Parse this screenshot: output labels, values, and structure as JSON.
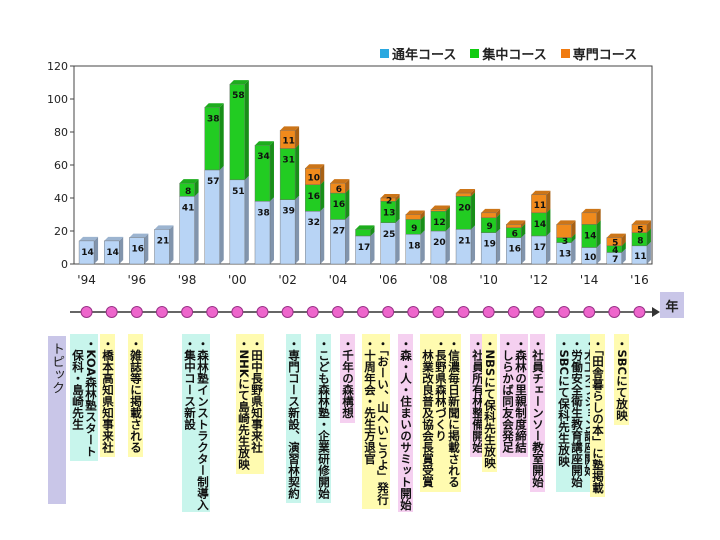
{
  "chart_data": {
    "type": "bar",
    "stacked": true,
    "categories": [
      "'94",
      "'95",
      "'96",
      "'97",
      "'98",
      "'99",
      "'00",
      "'01",
      "'02",
      "'03",
      "'04",
      "'05",
      "'06",
      "'07",
      "'08",
      "'09",
      "'10",
      "'11",
      "'12",
      "'13",
      "'14",
      "'15",
      "'16"
    ],
    "x_tick_labels": [
      "'94",
      "",
      "'96",
      "",
      "'98",
      "",
      "'00",
      "",
      "'02",
      "",
      "'04",
      "",
      "'06",
      "",
      "'08",
      "",
      "'10",
      "",
      "'12",
      "",
      "'14",
      "",
      "'16"
    ],
    "series": [
      {
        "name": "通年コース",
        "color": "#b8d4f5",
        "legend_color": "#2aa8e0",
        "values": [
          14,
          14,
          16,
          21,
          41,
          57,
          51,
          38,
          39,
          32,
          27,
          17,
          25,
          18,
          20,
          21,
          19,
          16,
          17,
          13,
          10,
          7,
          11
        ]
      },
      {
        "name": "集中コース",
        "color": "#22cc22",
        "legend_color": "#11cc11",
        "values": [
          0,
          0,
          0,
          0,
          8,
          38,
          58,
          34,
          31,
          16,
          16,
          4,
          13,
          9,
          12,
          20,
          9,
          6,
          14,
          3,
          14,
          4,
          8
        ]
      },
      {
        "name": "専門コース",
        "color": "#f08a1c",
        "legend_color": "#f07a10",
        "values": [
          0,
          0,
          0,
          0,
          0,
          0,
          0,
          0,
          11,
          10,
          6,
          0,
          2,
          3,
          1,
          2,
          3,
          2,
          11,
          8,
          7,
          5,
          5
        ]
      }
    ],
    "value_labels": [
      [
        "14",
        "14",
        "16",
        "21",
        "41",
        "57",
        "51",
        "38",
        "39",
        "32",
        "27",
        "17",
        "25",
        "18",
        "20",
        "21",
        "19",
        "16",
        "17",
        "13",
        "10",
        "7",
        "11"
      ],
      [
        "",
        "",
        "",
        "",
        "8",
        "38",
        "58",
        "34",
        "31",
        "16",
        "16",
        "",
        "13",
        "9",
        "12",
        "20",
        "9",
        "6",
        "14",
        "3",
        "14",
        "4",
        "8"
      ],
      [
        "",
        "",
        "",
        "",
        "",
        "",
        "",
        "",
        "11",
        "10",
        "6",
        "",
        "2",
        "",
        "",
        "",
        "",
        "",
        "11",
        "",
        "",
        "5",
        "5"
      ]
    ],
    "ylim": [
      0,
      120
    ],
    "yticks": [
      "0",
      "20",
      "40",
      "60",
      "80",
      "100",
      "120"
    ],
    "legend_position": "top-right",
    "grid": false,
    "xlabel": "年"
  },
  "topics_title": "トピック",
  "topics": [
    {
      "text": "・KOA森林塾スタート\n　保科・島崎先生",
      "color": "#c8f5ec"
    },
    {
      "text": "・橋本高知県知事来社",
      "color": "#fffbb0"
    },
    {
      "text": "・雑誌等に掲載される",
      "color": "#fffbb0"
    },
    {
      "text": "・森林塾インストラクター制導入\n・集中コース新設",
      "color": "#c8f5ec"
    },
    {
      "text": "・田中長野県知事来社\n・NHKにて島崎先生放映",
      "color": "#fffbb0"
    },
    {
      "text": "・専門コース新設、演習林契約",
      "color": "#c8f5ec"
    },
    {
      "text": "・こども森林塾・企業研修開始",
      "color": "#c8f5ec"
    },
    {
      "text": "・千年の森構想",
      "color": "#f5d0f0"
    },
    {
      "text": "・「おーい、山へいこうよ」発行\n・十周年会・先生方退官",
      "color": "#fffbb0"
    },
    {
      "text": "・森・人・住まいのサミット開始",
      "color": "#f5d0f0"
    },
    {
      "text": "・長野県森林づくり\n　林業改良普及協会長賞受賞",
      "color": "#fffbb0"
    },
    {
      "text": "・信濃毎日新聞に掲載される",
      "color": "#fffbb0"
    },
    {
      "text": "・社員所有林整備開始",
      "color": "#f5d0f0"
    },
    {
      "text": "・NBSにて保科先生放映",
      "color": "#fffbb0"
    },
    {
      "text": "・森林の里親制度締結\n・しらかば同友会発足",
      "color": "#f5d0f0"
    },
    {
      "text": "・社員チェーンソー教室開始",
      "color": "#f5d0f0"
    },
    {
      "text": "・木工オプション講座開始\n・労働安全衛生教育講座開始\n・SBCにて保科先生放映",
      "color": "#c8f5ec"
    },
    {
      "text": "・「田舎暮らしの本」に塾掲載",
      "color": "#fffbb0"
    },
    {
      "text": "・SBCにて放映",
      "color": "#fffbb0"
    }
  ]
}
